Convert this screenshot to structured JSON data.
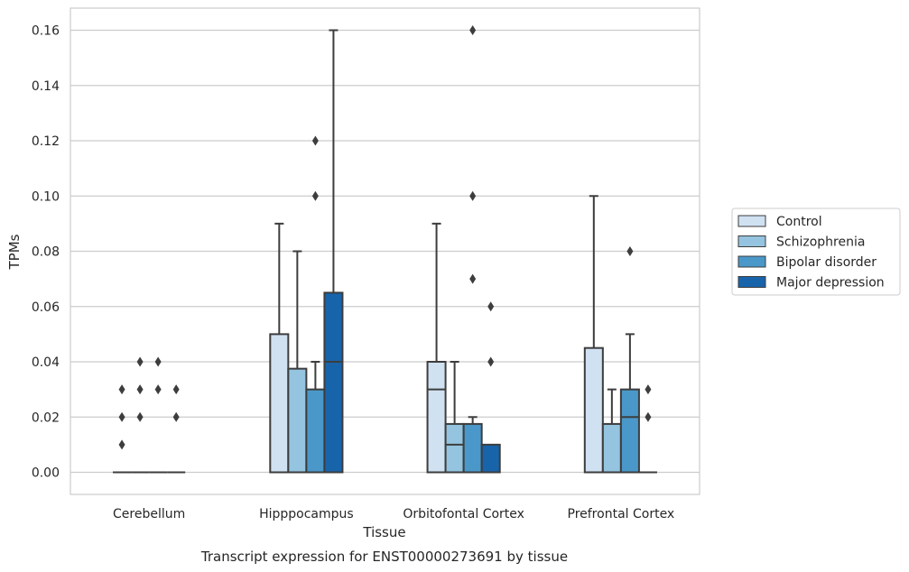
{
  "chart_data": {
    "type": "box",
    "caption": "Transcript expression for ENST00000273691 by tissue",
    "xlabel": "Tissue",
    "ylabel": "TPMs",
    "ylim": [
      -0.008,
      0.168
    ],
    "yticks": [
      0.0,
      0.02,
      0.04,
      0.06,
      0.08,
      0.1,
      0.12,
      0.14,
      0.16
    ],
    "ytick_labels": [
      "0.00",
      "0.02",
      "0.04",
      "0.06",
      "0.08",
      "0.10",
      "0.12",
      "0.14",
      "0.16"
    ],
    "grid": true,
    "legend_position": "right",
    "categories": [
      "Cerebellum",
      "Hipppocampus",
      "Orbitofontal Cortex",
      "Prefrontal Cortex"
    ],
    "series": [
      {
        "name": "Control",
        "color": "#d0e1f2",
        "boxes": [
          {
            "whislo": 0,
            "q1": 0,
            "med": 0,
            "q3": 0,
            "whishi": 0,
            "fliers": [
              0.01,
              0.02,
              0.03
            ]
          },
          {
            "whislo": 0,
            "q1": 0,
            "med": 0,
            "q3": 0.05,
            "whishi": 0.09,
            "fliers": []
          },
          {
            "whislo": 0,
            "q1": 0,
            "med": 0.03,
            "q3": 0.04,
            "whishi": 0.09,
            "fliers": []
          },
          {
            "whislo": 0,
            "q1": 0,
            "med": 0,
            "q3": 0.045,
            "whishi": 0.1,
            "fliers": []
          }
        ]
      },
      {
        "name": "Schizophrenia",
        "color": "#94c4df",
        "boxes": [
          {
            "whislo": 0,
            "q1": 0,
            "med": 0,
            "q3": 0,
            "whishi": 0,
            "fliers": [
              0.02,
              0.03,
              0.04
            ]
          },
          {
            "whislo": 0,
            "q1": 0,
            "med": 0,
            "q3": 0.0375,
            "whishi": 0.08,
            "fliers": []
          },
          {
            "whislo": 0,
            "q1": 0,
            "med": 0.01,
            "q3": 0.0175,
            "whishi": 0.04,
            "fliers": []
          },
          {
            "whislo": 0,
            "q1": 0,
            "med": 0,
            "q3": 0.0175,
            "whishi": 0.03,
            "fliers": []
          }
        ]
      },
      {
        "name": "Bipolar disorder",
        "color": "#4a98c9",
        "boxes": [
          {
            "whislo": 0,
            "q1": 0,
            "med": 0,
            "q3": 0,
            "whishi": 0,
            "fliers": [
              0.03,
              0.04
            ]
          },
          {
            "whislo": 0,
            "q1": 0,
            "med": 0,
            "q3": 0.03,
            "whishi": 0.04,
            "fliers": [
              0.1,
              0.12
            ]
          },
          {
            "whislo": 0,
            "q1": 0,
            "med": 0,
            "q3": 0.0175,
            "whishi": 0.02,
            "fliers": [
              0.07,
              0.1,
              0.16
            ]
          },
          {
            "whislo": 0,
            "q1": 0,
            "med": 0.02,
            "q3": 0.03,
            "whishi": 0.05,
            "fliers": [
              0.08
            ]
          }
        ]
      },
      {
        "name": "Major depression",
        "color": "#1764ab",
        "boxes": [
          {
            "whislo": 0,
            "q1": 0,
            "med": 0,
            "q3": 0,
            "whishi": 0,
            "fliers": [
              0.02,
              0.03
            ]
          },
          {
            "whislo": 0,
            "q1": 0,
            "med": 0.04,
            "q3": 0.065,
            "whishi": 0.16,
            "fliers": []
          },
          {
            "whislo": 0,
            "q1": 0,
            "med": 0,
            "q3": 0.01,
            "whishi": 0.01,
            "fliers": [
              0.04,
              0.06
            ]
          },
          {
            "whislo": 0,
            "q1": 0,
            "med": 0,
            "q3": 0,
            "whishi": 0,
            "fliers": [
              0.02,
              0.03
            ]
          }
        ]
      }
    ]
  }
}
